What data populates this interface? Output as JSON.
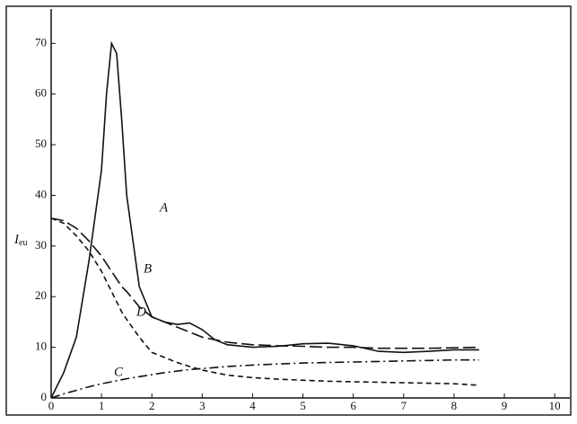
{
  "chart_data": {
    "type": "line",
    "ylabel": "I",
    "ylabel_subscript": "eu",
    "x": [
      0,
      0.25,
      0.5,
      0.75,
      1,
      1.1,
      1.2,
      1.3,
      1.4,
      1.5,
      1.75,
      2,
      2.25,
      2.5,
      2.75,
      3,
      3.25,
      3.5,
      4,
      4.5,
      5,
      5.5,
      6,
      6.5,
      7,
      7.5,
      8,
      8.5
    ],
    "series": [
      {
        "name": "A",
        "color": "#111111",
        "style": "solid",
        "values": [
          0,
          5,
          12,
          27,
          45,
          60,
          70,
          68,
          55,
          40,
          22,
          16,
          15,
          14.5,
          14.8,
          13.5,
          11.5,
          10.5,
          10,
          10.2,
          10.7,
          10.8,
          10.3,
          9.2,
          9,
          9.2,
          9.5,
          9.5
        ]
      },
      {
        "name": "B",
        "color": "#111111",
        "style": "long-dash",
        "values": [
          35.5,
          35,
          33.5,
          31,
          28,
          26.5,
          25,
          23.5,
          22,
          21,
          18,
          16,
          15,
          14,
          13,
          12,
          11.5,
          11,
          10.5,
          10.3,
          10.2,
          10,
          10,
          9.8,
          9.8,
          9.8,
          9.9,
          10
        ]
      },
      {
        "name": "C",
        "color": "#111111",
        "style": "dash-dot",
        "values": [
          0,
          0.8,
          1.5,
          2.2,
          2.8,
          3,
          3.2,
          3.4,
          3.6,
          3.8,
          4.2,
          4.6,
          5,
          5.3,
          5.6,
          5.8,
          6,
          6.2,
          6.5,
          6.7,
          6.9,
          7,
          7.1,
          7.2,
          7.3,
          7.4,
          7.5,
          7.5
        ]
      },
      {
        "name": "D",
        "color": "#111111",
        "style": "dash",
        "values": [
          35.5,
          34.5,
          32,
          29,
          25,
          23,
          21,
          19,
          17,
          15.5,
          12,
          9,
          8,
          7,
          6.2,
          5.5,
          5,
          4.5,
          4,
          3.7,
          3.5,
          3.3,
          3.2,
          3.1,
          3,
          2.9,
          2.8,
          2.5
        ]
      }
    ],
    "xlim": [
      0,
      10.3
    ],
    "ylim": [
      0,
      76.8
    ],
    "xticks": [
      0,
      1,
      2,
      3,
      4,
      5,
      6,
      7,
      8,
      9,
      10
    ],
    "yticks": [
      0,
      10,
      20,
      30,
      40,
      50,
      60,
      70
    ]
  }
}
